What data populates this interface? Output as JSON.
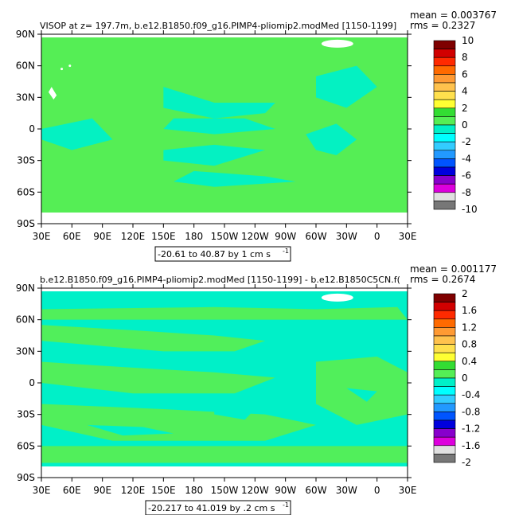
{
  "chart_data": [
    {
      "type": "heatmap",
      "title": "VISOP at z= 197.7m, b.e12.B1850.f09_g16.PIMP4-pliomip2.modMed [1150-1199]",
      "stats": [
        "mean = 0.003767",
        "rms = 0.2327"
      ],
      "x_ticks": [
        "30E",
        "60E",
        "90E",
        "120E",
        "150E",
        "180",
        "150W",
        "120W",
        "90W",
        "60W",
        "30W",
        "0",
        "30E"
      ],
      "y_ticks": [
        "90N",
        "60N",
        "30N",
        "0",
        "30S",
        "60S",
        "90S"
      ],
      "colorbar": {
        "labels": [
          "10",
          "8",
          "6",
          "4",
          "2",
          "0",
          "-2",
          "-4",
          "-6",
          "-8",
          "-10"
        ],
        "colors": [
          "#7f0000",
          "#d10000",
          "#ff2a00",
          "#ff6a00",
          "#ff9a33",
          "#ffc24d",
          "#ffe04d",
          "#ffff33",
          "#33dd33",
          "#55ee55",
          "#00f0c8",
          "#00ffff",
          "#33ccff",
          "#2299ff",
          "#0055ff",
          "#0000dd",
          "#8800cc",
          "#dd00dd",
          "#e0e0e0",
          "#777777"
        ]
      },
      "range_text": "-20.61 to 40.87 by 1 cm s",
      "range_sup": "-1",
      "colors": {
        "land": "#ffffff",
        "ocean_main": "#55ee55",
        "ocean_secondary": "#00f0c8"
      }
    },
    {
      "type": "heatmap",
      "title": "b.e12.B1850.f09_g16.PIMP4-pliomip2.modMed [1150-1199] - b.e12.B1850C5CN.f(",
      "stats": [
        "mean = 0.001177",
        "rms = 0.2674"
      ],
      "x_ticks": [
        "30E",
        "60E",
        "90E",
        "120E",
        "150E",
        "180",
        "150W",
        "120W",
        "90W",
        "60W",
        "30W",
        "0",
        "30E"
      ],
      "y_ticks": [
        "90N",
        "60N",
        "30N",
        "0",
        "30S",
        "60S",
        "90S"
      ],
      "colorbar": {
        "labels": [
          "2",
          "1.6",
          "1.2",
          "0.8",
          "0.4",
          "0",
          "-0.4",
          "-0.8",
          "-1.2",
          "-1.6",
          "-2"
        ],
        "colors": [
          "#7f0000",
          "#d10000",
          "#ff2a00",
          "#ff6a00",
          "#ff9a33",
          "#ffc24d",
          "#ffe04d",
          "#ffff33",
          "#33dd33",
          "#55ee55",
          "#00f0c8",
          "#00ffff",
          "#33ccff",
          "#2299ff",
          "#0055ff",
          "#0000dd",
          "#8800cc",
          "#dd00dd",
          "#e0e0e0",
          "#777777"
        ]
      },
      "range_text": "-20.217 to 41.019 by .2 cm s",
      "range_sup": "-1",
      "colors": {
        "land": "#ffffff",
        "ocean_main": "#00f0c8",
        "ocean_secondary": "#55ee55"
      }
    }
  ]
}
